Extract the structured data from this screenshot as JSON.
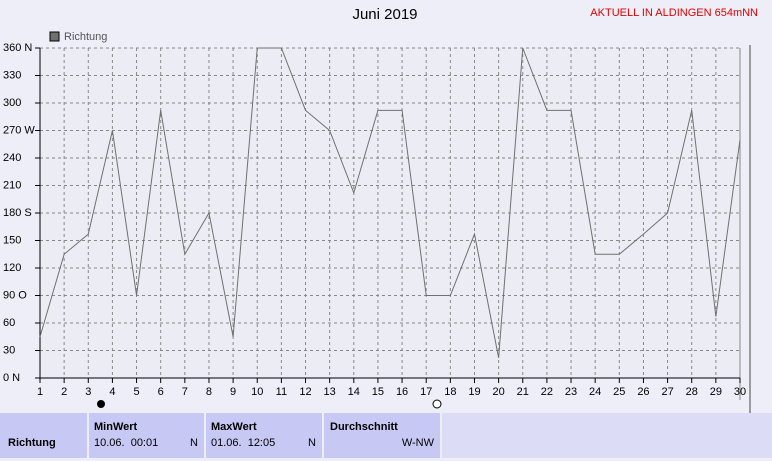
{
  "header": {
    "alert": "AKTUELL IN ALDINGEN 654mNN"
  },
  "chart_data": {
    "type": "line",
    "title": "Juni 2019",
    "x": [
      1,
      2,
      3,
      4,
      5,
      6,
      7,
      8,
      9,
      10,
      11,
      12,
      13,
      14,
      15,
      16,
      17,
      18,
      19,
      20,
      21,
      22,
      23,
      24,
      25,
      26,
      27,
      28,
      29,
      30
    ],
    "series": [
      {
        "name": "Richtung",
        "color": "#707070",
        "values": [
          45,
          135,
          157,
          270,
          90,
          292,
          135,
          180,
          45,
          360,
          360,
          292,
          270,
          202,
          292,
          292,
          90,
          90,
          157,
          22,
          360,
          292,
          292,
          135,
          135,
          157,
          180,
          292,
          67,
          260
        ]
      }
    ],
    "xlim": [
      1,
      30
    ],
    "xticks": [
      1,
      2,
      3,
      4,
      5,
      6,
      7,
      8,
      9,
      10,
      11,
      12,
      13,
      14,
      15,
      16,
      17,
      18,
      19,
      20,
      21,
      22,
      23,
      24,
      25,
      26,
      27,
      28,
      29,
      30
    ],
    "ylim": [
      0,
      360
    ],
    "yticks": [
      {
        "value": 0,
        "label": "0 N"
      },
      30,
      60,
      {
        "value": 90,
        "label": "90 O"
      },
      120,
      150,
      {
        "value": 180,
        "label": "180 S"
      },
      210,
      240,
      {
        "value": 270,
        "label": "270 W"
      },
      300,
      330,
      {
        "value": 360,
        "label": "360 N"
      }
    ],
    "grid": true
  },
  "table": {
    "headers": [
      "MinWert",
      "MaxWert",
      "Durchschnitt"
    ],
    "rows": [
      [
        "Richtung",
        "10.06.  00:01",
        "N",
        "01.06.  12:05",
        "N",
        "W-NW"
      ]
    ]
  }
}
